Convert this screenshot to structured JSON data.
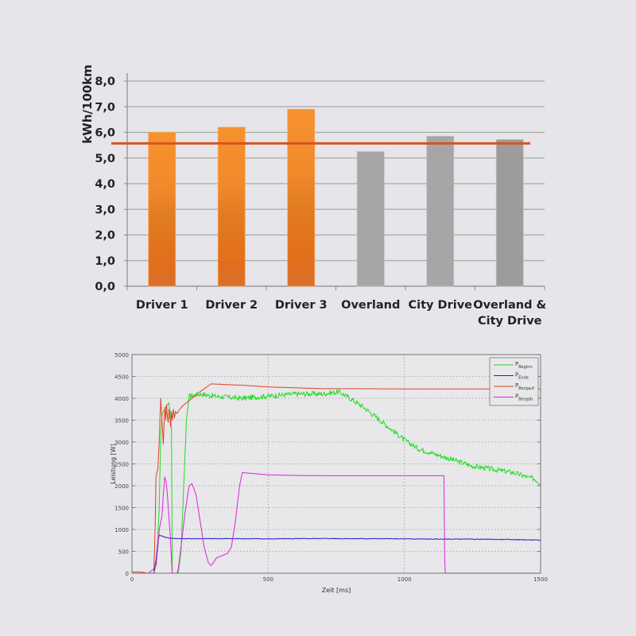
{
  "chart_data": [
    {
      "type": "bar",
      "title": "",
      "xlabel": "",
      "ylabel": "kWh/100km",
      "ylim": [
        0,
        8
      ],
      "yticks": [
        "0,0",
        "1,0",
        "2,0",
        "3,0",
        "4,0",
        "5,0",
        "6,0",
        "7,0",
        "8,0"
      ],
      "grid": true,
      "categories": [
        "Driver 1",
        "Driver 2",
        "Driver 3",
        "Overland",
        "City Drive",
        "Overland & City Drive"
      ],
      "category_lines": [
        [
          "Driver 1"
        ],
        [
          "Driver 2"
        ],
        [
          "Driver 3"
        ],
        [
          "Overland"
        ],
        [
          "City Drive"
        ],
        [
          "Overland &",
          "City Drive"
        ]
      ],
      "values": [
        6.0,
        6.2,
        6.9,
        5.25,
        5.85,
        5.72
      ],
      "bar_colors": [
        "#f28a2a",
        "#f28a2a",
        "#f28a2a",
        "#a6a6a6",
        "#a6a6a6",
        "#9c9c9c"
      ],
      "reference_line": {
        "value": 5.57,
        "color": "#d9531e"
      }
    },
    {
      "type": "line",
      "title": "",
      "xlabel": "Zeit [ms]",
      "ylabel": "Leistung [W]",
      "xlim": [
        0,
        1500
      ],
      "ylim": [
        0,
        5000
      ],
      "xticks": [
        0,
        500,
        1000,
        1500
      ],
      "yticks": [
        0,
        500,
        1000,
        1500,
        2000,
        2500,
        3000,
        3500,
        4000,
        4500,
        5000
      ],
      "grid": true,
      "legend_position": "upper right",
      "series": [
        {
          "name": "P_Beginn",
          "label_main": "P",
          "label_sub": "Beginn",
          "color": "#22dd22",
          "noise": 60,
          "points": [
            [
              0,
              0
            ],
            [
              80,
              0
            ],
            [
              90,
              200
            ],
            [
              100,
              1500
            ],
            [
              105,
              3000
            ],
            [
              110,
              3600
            ],
            [
              115,
              3700
            ],
            [
              120,
              3750
            ],
            [
              125,
              3800
            ],
            [
              130,
              3850
            ],
            [
              135,
              3900
            ],
            [
              140,
              3700
            ],
            [
              145,
              3300
            ],
            [
              148,
              0
            ],
            [
              170,
              0
            ],
            [
              180,
              500
            ],
            [
              190,
              2000
            ],
            [
              200,
              3500
            ],
            [
              210,
              4050
            ],
            [
              250,
              4100
            ],
            [
              300,
              4050
            ],
            [
              400,
              4000
            ],
            [
              500,
              4050
            ],
            [
              600,
              4100
            ],
            [
              700,
              4100
            ],
            [
              760,
              4150
            ],
            [
              800,
              4000
            ],
            [
              850,
              3800
            ],
            [
              900,
              3550
            ],
            [
              950,
              3300
            ],
            [
              1000,
              3050
            ],
            [
              1050,
              2850
            ],
            [
              1100,
              2750
            ],
            [
              1150,
              2650
            ],
            [
              1200,
              2550
            ],
            [
              1250,
              2450
            ],
            [
              1300,
              2400
            ],
            [
              1350,
              2350
            ],
            [
              1400,
              2300
            ],
            [
              1450,
              2200
            ],
            [
              1480,
              2150
            ],
            [
              1500,
              2050
            ]
          ]
        },
        {
          "name": "P_Ende",
          "label_main": "P",
          "label_sub": "Ende",
          "color": "#2222cc",
          "noise": 8,
          "points": [
            [
              0,
              0
            ],
            [
              80,
              0
            ],
            [
              88,
              300
            ],
            [
              95,
              700
            ],
            [
              100,
              870
            ],
            [
              110,
              850
            ],
            [
              130,
              810
            ],
            [
              150,
              795
            ],
            [
              200,
              790
            ],
            [
              300,
              790
            ],
            [
              400,
              790
            ],
            [
              500,
              785
            ],
            [
              600,
              790
            ],
            [
              700,
              795
            ],
            [
              800,
              790
            ],
            [
              900,
              790
            ],
            [
              1000,
              785
            ],
            [
              1100,
              780
            ],
            [
              1200,
              780
            ],
            [
              1300,
              775
            ],
            [
              1400,
              770
            ],
            [
              1500,
              755
            ]
          ]
        },
        {
          "name": "P_Bergauf",
          "label_main": "P",
          "label_sub": "Bergauf",
          "color": "#dd4422",
          "noise": 0,
          "points": [
            [
              0,
              30
            ],
            [
              20,
              30
            ],
            [
              40,
              20
            ],
            [
              60,
              0
            ],
            [
              80,
              0
            ],
            [
              85,
              1000
            ],
            [
              88,
              2200
            ],
            [
              95,
              2400
            ],
            [
              100,
              3000
            ],
            [
              103,
              3600
            ],
            [
              106,
              4000
            ],
            [
              109,
              3600
            ],
            [
              112,
              3300
            ],
            [
              115,
              2950
            ],
            [
              118,
              3400
            ],
            [
              121,
              3800
            ],
            [
              124,
              3500
            ],
            [
              127,
              3850
            ],
            [
              130,
              3600
            ],
            [
              133,
              3450
            ],
            [
              136,
              3750
            ],
            [
              139,
              3600
            ],
            [
              142,
              3350
            ],
            [
              145,
              3700
            ],
            [
              148,
              3500
            ],
            [
              152,
              3750
            ],
            [
              156,
              3550
            ],
            [
              160,
              3700
            ],
            [
              165,
              3650
            ],
            [
              175,
              3750
            ],
            [
              190,
              3850
            ],
            [
              210,
              3950
            ],
            [
              250,
              4150
            ],
            [
              290,
              4330
            ],
            [
              400,
              4300
            ],
            [
              500,
              4260
            ],
            [
              600,
              4240
            ],
            [
              650,
              4230
            ],
            [
              700,
              4220
            ],
            [
              800,
              4220
            ],
            [
              1000,
              4215
            ],
            [
              1200,
              4215
            ],
            [
              1500,
              4215
            ]
          ]
        },
        {
          "name": "P_Bergab",
          "label_main": "P",
          "label_sub": "Bergab",
          "color": "#dd22dd",
          "noise": 0,
          "points": [
            [
              0,
              0
            ],
            [
              60,
              0
            ],
            [
              70,
              50
            ],
            [
              80,
              100
            ],
            [
              88,
              200
            ],
            [
              95,
              600
            ],
            [
              100,
              1000
            ],
            [
              110,
              1300
            ],
            [
              115,
              1800
            ],
            [
              120,
              2200
            ],
            [
              125,
              2100
            ],
            [
              130,
              1800
            ],
            [
              140,
              900
            ],
            [
              145,
              300
            ],
            [
              148,
              0
            ],
            [
              165,
              0
            ],
            [
              170,
              100
            ],
            [
              180,
              600
            ],
            [
              195,
              1400
            ],
            [
              210,
              2000
            ],
            [
              220,
              2050
            ],
            [
              235,
              1800
            ],
            [
              250,
              1200
            ],
            [
              265,
              600
            ],
            [
              280,
              250
            ],
            [
              290,
              170
            ],
            [
              300,
              250
            ],
            [
              310,
              350
            ],
            [
              330,
              400
            ],
            [
              350,
              450
            ],
            [
              365,
              600
            ],
            [
              380,
              1200
            ],
            [
              395,
              2000
            ],
            [
              405,
              2300
            ],
            [
              500,
              2250
            ],
            [
              600,
              2235
            ],
            [
              700,
              2230
            ],
            [
              800,
              2230
            ],
            [
              1000,
              2230
            ],
            [
              1145,
              2230
            ],
            [
              1148,
              300
            ],
            [
              1150,
              0
            ],
            [
              1500,
              0
            ]
          ]
        }
      ]
    }
  ]
}
